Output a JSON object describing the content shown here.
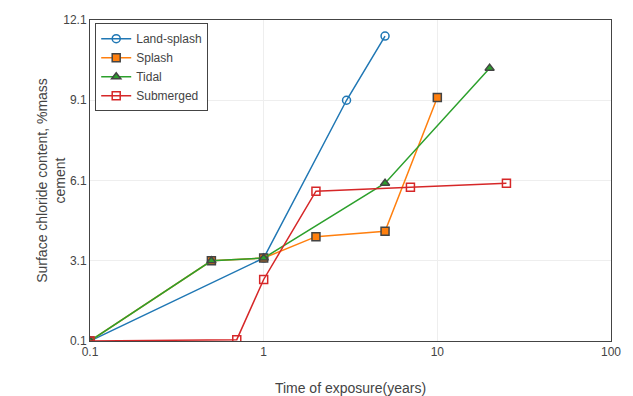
{
  "chart_data": {
    "type": "line",
    "xlabel": "Time of exposure(years)",
    "ylabel": "Surface chloride content, %mass\ncement",
    "log": "x",
    "xlim": [
      0.1,
      100
    ],
    "ylim": [
      0.1,
      12.1
    ],
    "xticks": [
      0.1,
      1,
      10,
      100
    ],
    "yticks": [
      0.1,
      3.1,
      6.1,
      9.1,
      12.1
    ],
    "grid": true,
    "legend": "upper left",
    "line_style": "solid",
    "series": [
      {
        "name": "Land-splash",
        "x": [
          0.1,
          1.0,
          3.0,
          5.0
        ],
        "values": [
          0.1,
          3.2,
          9.1,
          11.5
        ],
        "marker": "circle-open"
      },
      {
        "name": "Splash",
        "x": [
          0.1,
          0.5,
          1.0,
          2.0,
          5.0,
          10.0
        ],
        "values": [
          0.1,
          3.1,
          3.2,
          4.0,
          4.2,
          9.2
        ],
        "marker": "square"
      },
      {
        "name": "Tidal",
        "x": [
          0.1,
          0.5,
          1.0,
          5.0,
          20.0
        ],
        "values": [
          0.1,
          3.1,
          3.2,
          6.0,
          10.3
        ],
        "marker": "triangle-up"
      },
      {
        "name": "Submerged",
        "x": [
          0.1,
          0.7,
          1.0,
          2.0,
          7.0,
          25.0
        ],
        "values": [
          0.1,
          0.15,
          2.4,
          5.7,
          5.85,
          6.0
        ],
        "marker": "square-open"
      }
    ]
  }
}
